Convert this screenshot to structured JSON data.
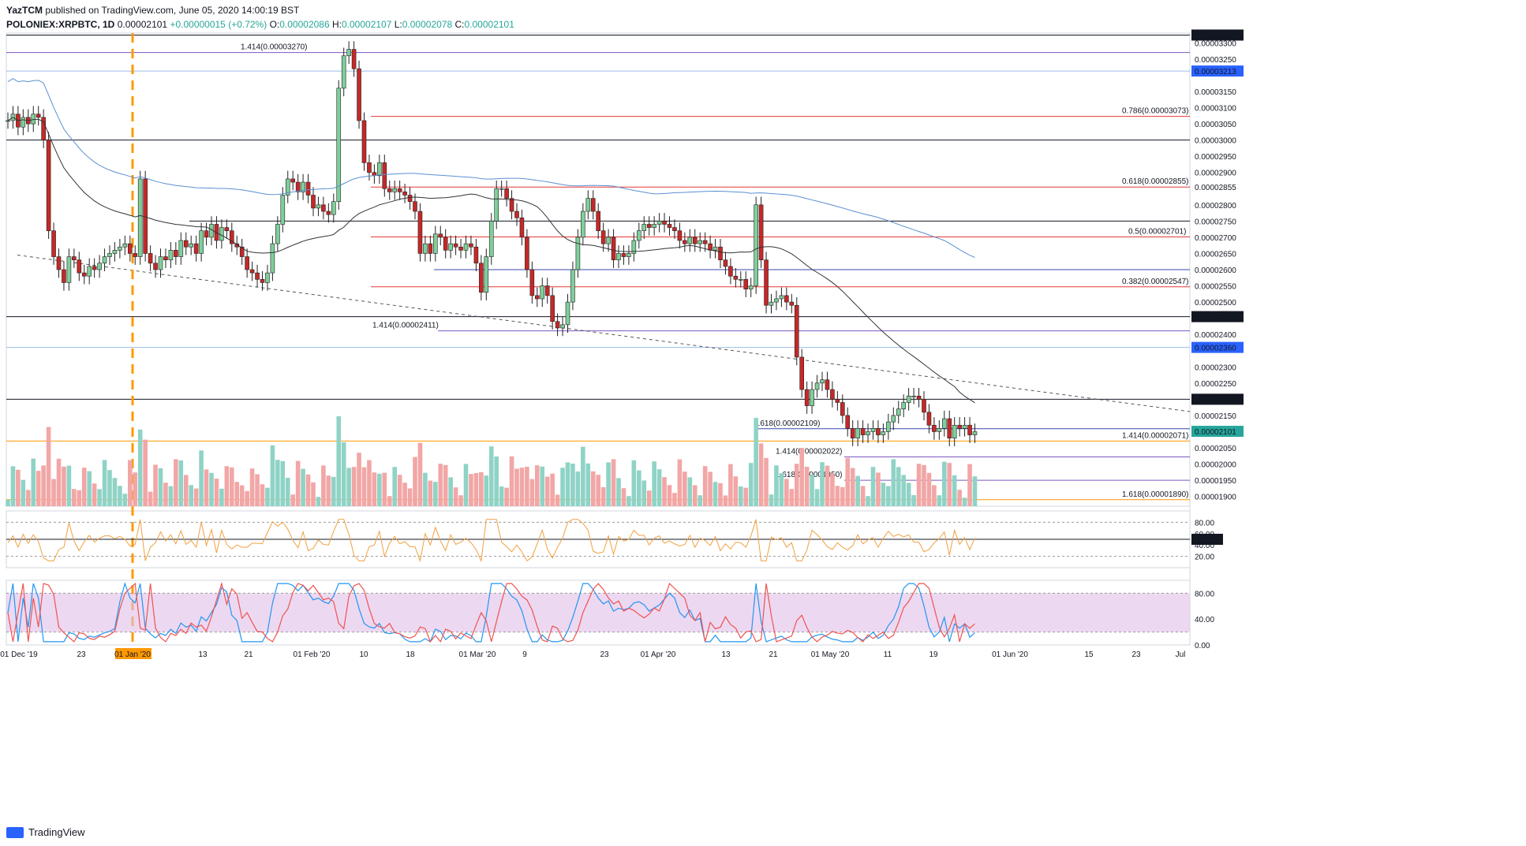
{
  "header": {
    "author": "YazTCM",
    "published": "published on TradingView.com, June 05, 2020 14:00:19 BST",
    "symbol": "POLONIEX:XRPBTC, 1D",
    "last": "0.00002101",
    "change": "+0.00000015 (+0.72%)",
    "o_label": "O:",
    "o": "0.00002086",
    "h_label": "H:",
    "h": "0.00002107",
    "l_label": "L:",
    "l": "0.00002078",
    "c_label": "C:",
    "c": "0.00002101"
  },
  "brand": {
    "name": "TradingView"
  },
  "colors": {
    "up": "#26a69a",
    "down": "#ef5350",
    "fib": "#e53935",
    "blue_line": "#5b8fd1",
    "ma_black": "#333333",
    "orange": "#ff9800",
    "rsi": "#f0a040",
    "stoch_k": "#2196f3",
    "stoch_d": "#ef5350",
    "stoch_band": "#e1bee7",
    "purple": "#7e57c2"
  },
  "chart_data": {
    "type": "candlestick",
    "title": "",
    "x_ticks": [
      "01 Dec '19",
      "23",
      "01 Jan '20",
      "13",
      "21",
      "01 Feb '20",
      "10",
      "18",
      "01 Mar '20",
      "9",
      "23",
      "01 Apr '20",
      "13",
      "21",
      "01 May '20",
      "11",
      "19",
      "01 Jun '20",
      "15",
      "23",
      "Jul"
    ],
    "y_ticks": [
      "0.00003324",
      "0.00003300",
      "0.00003250",
      "0.00003213",
      "0.00003150",
      "0.00003100",
      "0.00003050",
      "0.00003000",
      "0.00002950",
      "0.00002900",
      "0.00002855",
      "0.00002800",
      "0.00002750",
      "0.00002700",
      "0.00002650",
      "0.00002600",
      "0.00002550",
      "0.00002500",
      "0.00002455",
      "0.00002400",
      "0.00002360",
      "0.00002300",
      "0.00002250",
      "0.00002200",
      "0.00002150",
      "0.00002101",
      "0.00002050",
      "0.00002000",
      "0.00001950",
      "0.00001900"
    ],
    "ylim": [
      1.87e-05,
      3.33e-05
    ],
    "closes": [
      30.6,
      30.8,
      30.4,
      30.7,
      30.5,
      30.8,
      30.7,
      30.0,
      27.2,
      26.4,
      26.0,
      25.6,
      26.4,
      26.3,
      25.9,
      25.8,
      26.1,
      26.0,
      26.2,
      26.4,
      26.5,
      26.6,
      26.7,
      26.8,
      26.5,
      26.4,
      28.8,
      26.5,
      26.2,
      26.0,
      26.4,
      26.3,
      26.6,
      26.4,
      26.9,
      26.7,
      26.8,
      26.5,
      27.2,
      27.0,
      27.4,
      26.9,
      27.3,
      27.2,
      26.8,
      26.7,
      26.4,
      26.0,
      25.9,
      25.7,
      25.6,
      25.9,
      26.8,
      27.4,
      28.3,
      28.8,
      28.7,
      28.4,
      28.7,
      28.3,
      27.9,
      28.0,
      27.8,
      27.7,
      28.1,
      31.6,
      32.6,
      32.8,
      32.2,
      30.6,
      29.3,
      29.0,
      28.9,
      29.3,
      28.5,
      28.4,
      28.5,
      28.4,
      28.3,
      28.1,
      27.8,
      26.5,
      26.8,
      26.5,
      27.1,
      27.0,
      26.6,
      26.8,
      26.7,
      26.6,
      26.8,
      26.7,
      26.2,
      25.3,
      26.4,
      27.5,
      28.5,
      28.5,
      28.2,
      27.8,
      27.6,
      27.0,
      26.0,
      25.2,
      25.1,
      25.5,
      25.2,
      24.4,
      24.2,
      24.3,
      25.0,
      26.0,
      27.0,
      27.8,
      28.2,
      27.8,
      27.2,
      26.8,
      27.0,
      26.3,
      26.5,
      26.4,
      26.5,
      26.9,
      27.2,
      27.4,
      27.3,
      27.4,
      27.5,
      27.4,
      27.3,
      27.2,
      26.9,
      26.8,
      27.0,
      26.8,
      26.9,
      26.8,
      26.6,
      26.7,
      26.3,
      26.1,
      25.8,
      25.7,
      25.7,
      25.4,
      25.5,
      28.0,
      26.3,
      24.9,
      25.0,
      25.1,
      25.2,
      25.0,
      24.9,
      23.3,
      22.3,
      21.8,
      22.3,
      22.5,
      22.6,
      22.3,
      22.0,
      21.9,
      21.5,
      21.1,
      20.8,
      21.1,
      20.9,
      21.0,
      21.1,
      20.9,
      21.0,
      21.3,
      21.5,
      21.7,
      21.9,
      22.1,
      22.1,
      22.0,
      21.6,
      21.2,
      21.0,
      21.1,
      21.4,
      20.8,
      21.2,
      21.1,
      21.2,
      20.9,
      21.0
    ]
  },
  "annotations": {
    "fib_1414_top": "1.414(0.00003270)",
    "fib_0786": "0.786(0.00003073)",
    "fib_0618": "0.618(0.00002855)",
    "fib_05": "0.5(0.00002701)",
    "fib_0382": "0.382(0.00002547)",
    "fib_1414_mid": "1.414(0.00002411)",
    "fib_1618_a": "1.618(0.00002109)",
    "fib_1414_b": "1.414(0.00002071)",
    "fib_1414_c": "1.414(0.00002022)",
    "fib_1618_d": "1.618(0.00001950)",
    "fib_1618_e": "1.618(0.00001890)"
  },
  "rsi": {
    "ticks": [
      "80.00",
      "60.00",
      "50.00",
      "40.00",
      "20.00"
    ]
  },
  "stoch": {
    "ticks": [
      "80.00",
      "40.00",
      "0.00"
    ]
  }
}
